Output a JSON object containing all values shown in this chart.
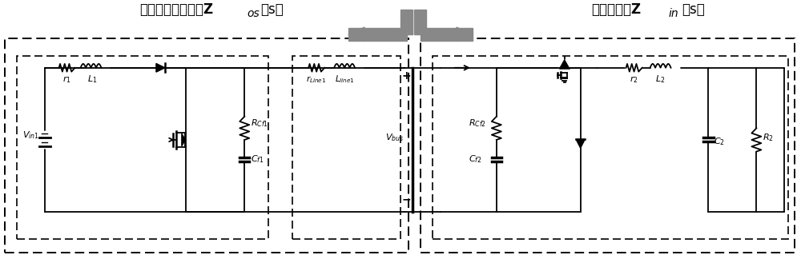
{
  "bg_color": "#ffffff",
  "line_color": "#000000",
  "gray_color": "#888888",
  "fig_width": 10.0,
  "fig_height": 3.34,
  "dpi": 100,
  "title_left": "源子系统输出阻抗Z",
  "title_left_sub": "os",
  "title_left_suffix": "（s）",
  "title_right": "负载子系统Z",
  "title_right_sub": "in",
  "title_right_suffix": "（s）"
}
